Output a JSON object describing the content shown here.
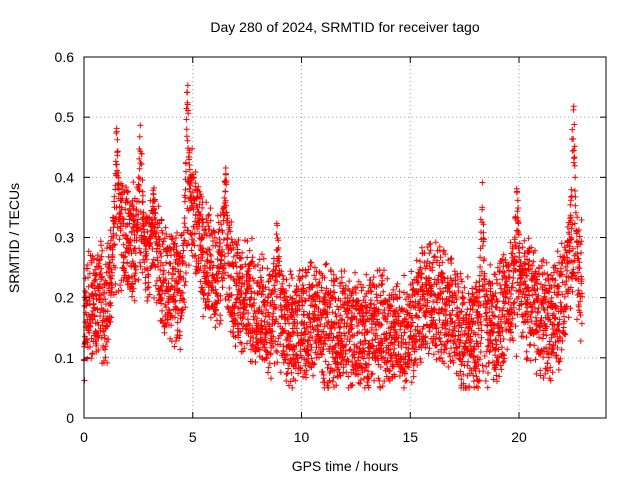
{
  "chart_data": {
    "type": "scatter",
    "title": "Day 280 of 2024, SRMTID for receiver tago",
    "xlabel": "GPS time / hours",
    "ylabel": "SRMTID / TECUs",
    "xlim": [
      0,
      24
    ],
    "ylim": [
      0,
      0.6
    ],
    "xticks": [
      0,
      5,
      10,
      15,
      20
    ],
    "yticks": [
      0,
      0.1,
      0.2,
      0.3,
      0.4,
      0.5,
      0.6
    ],
    "xtick_labels": [
      "0",
      "5",
      "10",
      "15",
      "20"
    ],
    "ytick_labels": [
      "0",
      "0.1",
      "0.2",
      "0.3",
      "0.4",
      "0.5",
      "0.6"
    ],
    "grid": true,
    "marker": "+",
    "marker_color": "#ff0000",
    "data_x_range": [
      0,
      22.9
    ],
    "sampling_interval_hours": 0.0083,
    "trend_points": [
      [
        0.0,
        0.15
      ],
      [
        0.5,
        0.2
      ],
      [
        1.0,
        0.18
      ],
      [
        1.5,
        0.3
      ],
      [
        2.0,
        0.3
      ],
      [
        2.5,
        0.28
      ],
      [
        3.0,
        0.28
      ],
      [
        3.5,
        0.24
      ],
      [
        4.0,
        0.22
      ],
      [
        4.5,
        0.22
      ],
      [
        4.8,
        0.32
      ],
      [
        5.0,
        0.35
      ],
      [
        5.5,
        0.27
      ],
      [
        6.0,
        0.24
      ],
      [
        6.5,
        0.26
      ],
      [
        7.0,
        0.2
      ],
      [
        7.5,
        0.2
      ],
      [
        8.0,
        0.18
      ],
      [
        8.5,
        0.17
      ],
      [
        9.0,
        0.16
      ],
      [
        9.5,
        0.14
      ],
      [
        10.0,
        0.15
      ],
      [
        10.5,
        0.17
      ],
      [
        11.0,
        0.15
      ],
      [
        11.5,
        0.15
      ],
      [
        12.0,
        0.15
      ],
      [
        12.5,
        0.14
      ],
      [
        13.0,
        0.14
      ],
      [
        13.5,
        0.15
      ],
      [
        14.0,
        0.14
      ],
      [
        14.5,
        0.13
      ],
      [
        15.0,
        0.15
      ],
      [
        15.5,
        0.19
      ],
      [
        16.0,
        0.2
      ],
      [
        16.5,
        0.18
      ],
      [
        17.0,
        0.16
      ],
      [
        17.5,
        0.14
      ],
      [
        18.0,
        0.14
      ],
      [
        18.5,
        0.15
      ],
      [
        19.0,
        0.16
      ],
      [
        19.5,
        0.2
      ],
      [
        20.0,
        0.21
      ],
      [
        20.5,
        0.2
      ],
      [
        21.0,
        0.17
      ],
      [
        21.5,
        0.15
      ],
      [
        22.0,
        0.2
      ],
      [
        22.5,
        0.28
      ],
      [
        22.9,
        0.22
      ]
    ],
    "spikes": [
      {
        "x": 1.5,
        "max": 0.49
      },
      {
        "x": 2.6,
        "max": 0.49
      },
      {
        "x": 3.2,
        "max": 0.4
      },
      {
        "x": 4.75,
        "max": 0.57
      },
      {
        "x": 6.5,
        "max": 0.42
      },
      {
        "x": 8.9,
        "max": 0.34
      },
      {
        "x": 18.3,
        "max": 0.4
      },
      {
        "x": 19.9,
        "max": 0.39
      },
      {
        "x": 22.5,
        "max": 0.53
      }
    ]
  }
}
